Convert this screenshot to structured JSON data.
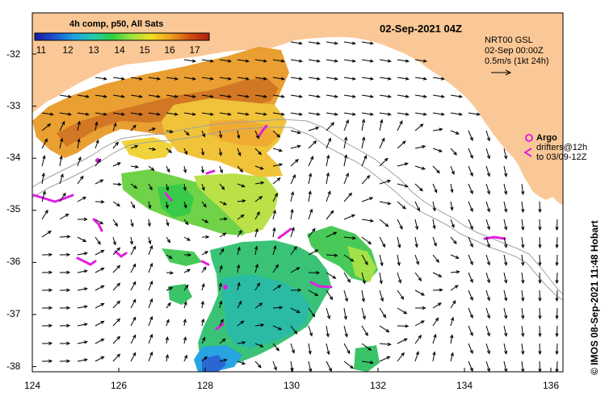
{
  "header": {
    "date_title": "02-Sep-2021 04Z"
  },
  "colorbar": {
    "title": "4h comp, p50, All Sats",
    "ticks": [
      "11",
      "12",
      "13",
      "14",
      "15",
      "16",
      "17"
    ],
    "colormap": [
      "#1a1aa0",
      "#1e50d0",
      "#1ca0e0",
      "#20c8b0",
      "#30d040",
      "#a0e040",
      "#f0e020",
      "#f0a020",
      "#d05010",
      "#b02010"
    ]
  },
  "current_info": {
    "line1": "NRT00 GSL",
    "line2": "02-Sep 00:00Z",
    "line3": "0.5m/s (1kt 24h)"
  },
  "argo_legend": {
    "argo_label": "Argo",
    "drifters_line1": "drifters@12h",
    "drifters_line2": "to 03/09-12Z"
  },
  "side_label": "© IMOS 08-Sep-2021 11:48 Hobart",
  "axes": {
    "x_ticks": [
      "124",
      "126",
      "128",
      "130",
      "132",
      "134",
      "136"
    ],
    "y_ticks": [
      "-32",
      "-33",
      "-34",
      "-35",
      "-36",
      "-37",
      "-38"
    ]
  },
  "colors": {
    "land": "#fac896",
    "argo": "#e020e0",
    "bathy": "#a0a0a0"
  }
}
